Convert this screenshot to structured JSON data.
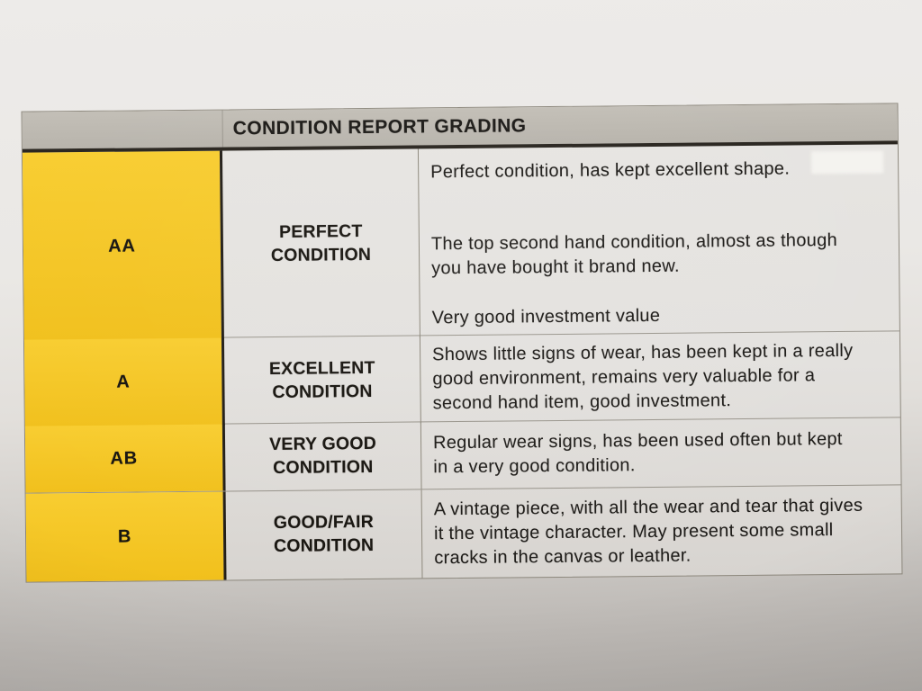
{
  "colors": {
    "grade_column_yellow": "#F3C524",
    "header_gray": "#BDB9B1",
    "paper_light": "#ECEAE8",
    "paper_shadow": "#B0ACA8",
    "cell_background": "#E3E1DE",
    "rule_black": "#28241E",
    "text": "#1D1B18"
  },
  "table": {
    "header": "CONDITION REPORT GRADING",
    "rows": [
      {
        "grade": "AA",
        "condition": "PERFECT\nCONDITION",
        "description": [
          "Perfect condition, has kept excellent shape.",
          "The top second hand condition, almost as though you have bought it brand new.",
          "Very good investment value"
        ]
      },
      {
        "grade": "A",
        "condition": "EXCELLENT\nCONDITION",
        "description": [
          "Shows little signs of wear, has been kept in a really good environment, remains very valuable for a second hand item, good investment."
        ]
      },
      {
        "grade": "AB",
        "condition": "VERY GOOD\nCONDITION",
        "description": [
          "Regular wear signs, has been used often but kept in a very good condition."
        ]
      },
      {
        "grade": "B",
        "condition": "GOOD/FAIR\nCONDITION",
        "description": [
          "A vintage piece, with all the wear and tear that gives it the vintage character. May present some small cracks in the canvas or leather."
        ]
      }
    ]
  }
}
